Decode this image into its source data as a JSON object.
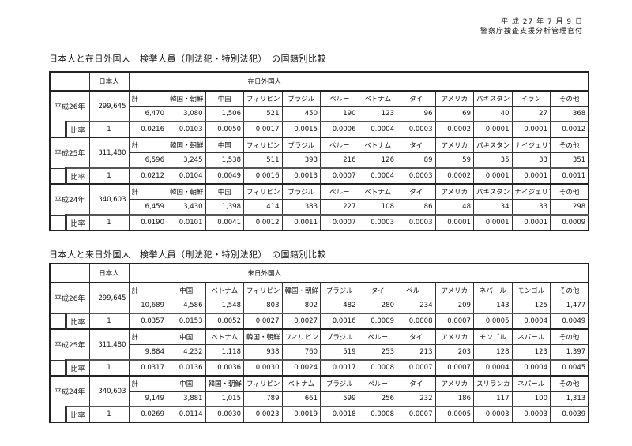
{
  "header": {
    "date": "平 成 27 年 7 月 9 日",
    "issuer": "警察庁捜査支援分析管理官付"
  },
  "tables": [
    {
      "title": "日本人と在日外国人　検挙人員（刑法犯・特別法犯）　の国籍別比較",
      "japanese_label": "日本人",
      "group_label": "在日外国人",
      "ratio_label": "比率",
      "years": [
        {
          "year": "平成26年",
          "japanese": "299,645",
          "japanese_ratio": "1",
          "countries": [
            "計",
            "韓国・朝鮮",
            "中国",
            "フィリピン",
            "ブラジル",
            "ペルー",
            "ベトナム",
            "タイ",
            "アメリカ",
            "パキスタン",
            "イラン",
            "その他"
          ],
          "counts": [
            "6,470",
            "3,080",
            "1,506",
            "521",
            "450",
            "190",
            "123",
            "96",
            "69",
            "40",
            "27",
            "368"
          ],
          "ratios": [
            "0.0216",
            "0.0103",
            "0.0050",
            "0.0017",
            "0.0015",
            "0.0006",
            "0.0004",
            "0.0003",
            "0.0002",
            "0.0001",
            "0.0001",
            "0.0012"
          ]
        },
        {
          "year": "平成25年",
          "japanese": "311,480",
          "japanese_ratio": "1",
          "countries": [
            "計",
            "韓国・朝鮮",
            "中国",
            "フィリピン",
            "ブラジル",
            "ペルー",
            "ベトナム",
            "タイ",
            "アメリカ",
            "パキスタン",
            "ナイジェリア",
            "その他"
          ],
          "counts": [
            "6,596",
            "3,245",
            "1,538",
            "511",
            "393",
            "216",
            "126",
            "89",
            "59",
            "35",
            "33",
            "351"
          ],
          "ratios": [
            "0.0212",
            "0.0104",
            "0.0049",
            "0.0016",
            "0.0013",
            "0.0007",
            "0.0004",
            "0.0003",
            "0.0002",
            "0.0001",
            "0.0001",
            "0.0011"
          ]
        },
        {
          "year": "平成24年",
          "japanese": "340,603",
          "japanese_ratio": "1",
          "countries": [
            "計",
            "韓国・朝鮮",
            "中国",
            "フィリピン",
            "ブラジル",
            "ペルー",
            "ベトナム",
            "タイ",
            "アメリカ",
            "パキスタン",
            "ナイジェリア",
            "その他"
          ],
          "counts": [
            "6,459",
            "3,430",
            "1,398",
            "414",
            "383",
            "227",
            "108",
            "86",
            "48",
            "34",
            "33",
            "298"
          ],
          "ratios": [
            "0.0190",
            "0.0101",
            "0.0041",
            "0.0012",
            "0.0011",
            "0.0007",
            "0.0003",
            "0.0003",
            "0.0001",
            "0.0001",
            "0.0001",
            "0.0009"
          ]
        }
      ]
    },
    {
      "title": "日本人と来日外国人　検挙人員（刑法犯・特別法犯）　の国籍別比較",
      "japanese_label": "日本人",
      "group_label": "来日外国人",
      "ratio_label": "比率",
      "years": [
        {
          "year": "平成26年",
          "japanese": "299,645",
          "japanese_ratio": "1",
          "countries": [
            "計",
            "中国",
            "ベトナム",
            "フィリピン",
            "韓国・朝鮮",
            "ブラジル",
            "タイ",
            "ペルー",
            "アメリカ",
            "ネパール",
            "モンゴル",
            "その他"
          ],
          "counts": [
            "10,689",
            "4,586",
            "1,548",
            "803",
            "802",
            "482",
            "280",
            "234",
            "209",
            "143",
            "125",
            "1,477"
          ],
          "ratios": [
            "0.0357",
            "0.0153",
            "0.0052",
            "0.0027",
            "0.0027",
            "0.0016",
            "0.0009",
            "0.0008",
            "0.0007",
            "0.0005",
            "0.0004",
            "0.0049"
          ]
        },
        {
          "year": "平成25年",
          "japanese": "311,480",
          "japanese_ratio": "1",
          "countries": [
            "計",
            "中国",
            "ベトナム",
            "韓国・朝鮮",
            "フィリピン",
            "ブラジル",
            "ペルー",
            "タイ",
            "アメリカ",
            "モンゴル",
            "ネパール",
            "その他"
          ],
          "counts": [
            "9,884",
            "4,232",
            "1,118",
            "938",
            "760",
            "519",
            "253",
            "213",
            "203",
            "128",
            "123",
            "1,397"
          ],
          "ratios": [
            "0.0317",
            "0.0136",
            "0.0036",
            "0.0030",
            "0.0024",
            "0.0017",
            "0.0008",
            "0.0007",
            "0.0007",
            "0.0004",
            "0.0004",
            "0.0045"
          ]
        },
        {
          "year": "平成24年",
          "japanese": "340,603",
          "japanese_ratio": "1",
          "countries": [
            "計",
            "中国",
            "韓国・朝鮮",
            "フィリピン",
            "ベトナム",
            "ブラジル",
            "ペルー",
            "タイ",
            "アメリカ",
            "スリランカ",
            "ネパール",
            "その他"
          ],
          "counts": [
            "9,149",
            "3,881",
            "1,015",
            "789",
            "661",
            "599",
            "256",
            "232",
            "186",
            "117",
            "100",
            "1,313"
          ],
          "ratios": [
            "0.0269",
            "0.0114",
            "0.0030",
            "0.0023",
            "0.0019",
            "0.0018",
            "0.0008",
            "0.0007",
            "0.0005",
            "0.0003",
            "0.0003",
            "0.0039"
          ]
        }
      ]
    }
  ]
}
